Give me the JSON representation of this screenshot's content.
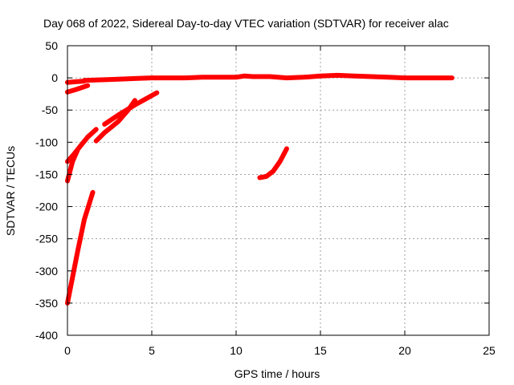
{
  "chart_data": {
    "type": "line",
    "title": "Day 068 of 2022, Sidereal Day-to-day VTEC variation (SDTVAR) for receiver alac",
    "xlabel": "GPS time / hours",
    "ylabel": "SDTVAR / TECUs",
    "xlim": [
      0,
      25
    ],
    "ylim": [
      -400,
      50
    ],
    "xticks": [
      0,
      5,
      10,
      15,
      20,
      25
    ],
    "yticks": [
      -400,
      -350,
      -300,
      -250,
      -200,
      -150,
      -100,
      -50,
      0,
      50
    ],
    "grid": true,
    "legend": "none",
    "series_color": "#ff0000",
    "series": [
      {
        "x": [
          0.0,
          0.3,
          0.6,
          1.0,
          1.5
        ],
        "y": [
          -350,
          -310,
          -270,
          -220,
          -178
        ]
      },
      {
        "x": [
          0.0,
          0.3,
          0.6
        ],
        "y": [
          -160,
          -130,
          -112
        ]
      },
      {
        "x": [
          0.0,
          0.4,
          0.8,
          1.2,
          1.7
        ],
        "y": [
          -130,
          -118,
          -105,
          -92,
          -80
        ]
      },
      {
        "x": [
          0.0,
          0.5,
          1.2
        ],
        "y": [
          -22,
          -18,
          -12
        ]
      },
      {
        "x": [
          0.0,
          0.5,
          1.0
        ],
        "y": [
          -7,
          -6,
          -5
        ]
      },
      {
        "x": [
          1.7,
          2.2,
          3.0,
          3.6,
          4.0
        ],
        "y": [
          -98,
          -85,
          -68,
          -50,
          -35
        ]
      },
      {
        "x": [
          2.2,
          3.0,
          4.0,
          5.3
        ],
        "y": [
          -72,
          -58,
          -42,
          -23
        ]
      },
      {
        "x": [
          1.0,
          2.0,
          3.0,
          4.0,
          5.0,
          6.0,
          7.0,
          8.0,
          9.0,
          10.0,
          10.5,
          11.0,
          12.0,
          13.0,
          14.0,
          15.0,
          16.0,
          17.0,
          18.0,
          19.0,
          20.0,
          21.0,
          22.0,
          22.8
        ],
        "y": [
          -4,
          -3,
          -2,
          -1,
          0,
          0,
          0,
          1,
          1,
          1,
          3,
          2,
          2,
          0,
          1,
          3,
          4,
          3,
          2,
          1,
          0,
          0,
          0,
          0
        ]
      },
      {
        "x": [
          11.4,
          11.8,
          12.2,
          12.6,
          13.0
        ],
        "y": [
          -155,
          -153,
          -145,
          -130,
          -110
        ]
      }
    ]
  }
}
